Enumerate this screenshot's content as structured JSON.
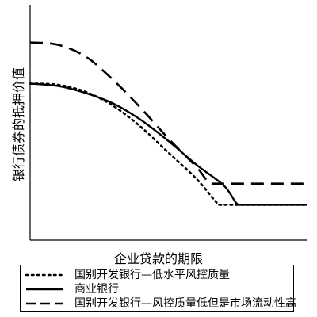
{
  "chart_data": {
    "type": "line",
    "title": "",
    "xlabel": "企业贷款的期限",
    "ylabel": "银行债券的抵押价值",
    "grid": false,
    "legend_position": "bottom",
    "xlim": [
      0,
      10
    ],
    "ylim": [
      0,
      10
    ],
    "series": [
      {
        "name": "国别开发银行—低水平风控质量",
        "style": "dotted",
        "x": [
          0,
          1,
          2,
          3,
          4,
          5,
          6,
          6.8,
          7,
          7.5,
          8,
          9,
          10
        ],
        "y": [
          6.65,
          6.6,
          6.3,
          5.7,
          4.8,
          3.7,
          2.6,
          1.5,
          1.5,
          1.5,
          1.5,
          1.5,
          1.5
        ]
      },
      {
        "name": "商业银行",
        "style": "solid",
        "x": [
          0,
          1,
          2,
          3,
          4,
          5,
          6,
          7,
          7.5,
          8,
          9,
          10
        ],
        "y": [
          6.65,
          6.55,
          6.25,
          5.8,
          5.1,
          4.2,
          3.2,
          2.3,
          1.5,
          1.5,
          1.5,
          1.5
        ]
      },
      {
        "name": "国别开发银行—风控质量低但是市场流动性高",
        "style": "dashed",
        "x": [
          0,
          1,
          2,
          3,
          4,
          5,
          6,
          6.5,
          7,
          8,
          9,
          10
        ],
        "y": [
          8.4,
          8.3,
          7.8,
          6.8,
          5.6,
          4.3,
          3.1,
          2.4,
          2.4,
          2.4,
          2.4,
          2.4
        ]
      }
    ]
  }
}
